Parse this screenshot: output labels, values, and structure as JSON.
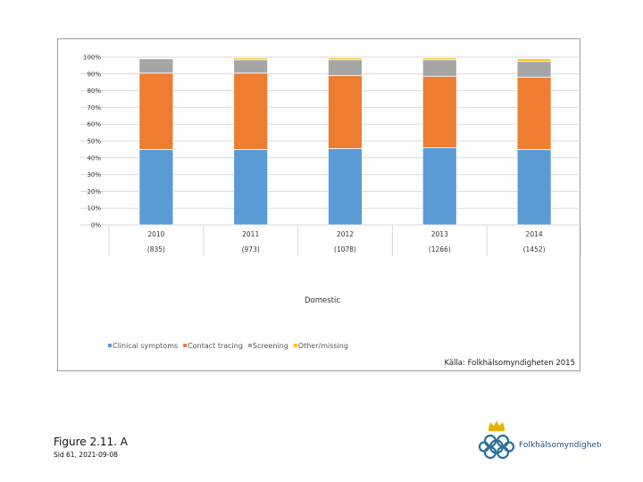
{
  "chart_data": {
    "type": "bar",
    "stacked": true,
    "categories": [
      "2010",
      "2011",
      "2012",
      "2013",
      "2014"
    ],
    "category_counts": [
      "(835)",
      "(973)",
      "(1078)",
      "(1266)",
      "(1452)"
    ],
    "series": [
      {
        "name": "Clinical symptoms",
        "color": "#5b9bd5",
        "values": [
          45,
          45,
          45.5,
          46,
          45
        ]
      },
      {
        "name": "Contact tracing",
        "color": "#ed7d31",
        "values": [
          45.5,
          45.5,
          43.5,
          42.5,
          43
        ]
      },
      {
        "name": "Screening",
        "color": "#a5a5a5",
        "values": [
          8.5,
          8,
          9.5,
          10,
          9.5
        ]
      },
      {
        "name": "Other/missing",
        "color": "#ffc000",
        "values": [
          0,
          1,
          1,
          1,
          1.5
        ]
      }
    ],
    "y_ticks": [
      "0%",
      "10%",
      "20%",
      "30%",
      "40%",
      "50%",
      "60%",
      "70%",
      "80%",
      "90%",
      "100%"
    ],
    "ylim": [
      0,
      100
    ],
    "xlabel": "Domestic",
    "legend_position": "bottom-left",
    "source": "Källa: Folkhälsomyndigheten 2015"
  },
  "caption": "Figure 2.11. A",
  "footer": "Sid 61, 2021-09-08",
  "logo": {
    "text": "Folkhälsomyndigheten",
    "color": "#2a6f97",
    "crown_color": "#e8b400"
  }
}
